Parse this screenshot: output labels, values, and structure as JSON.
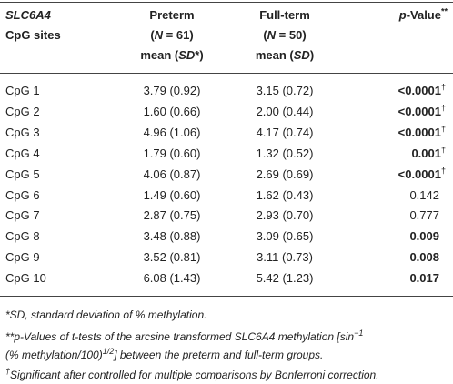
{
  "table": {
    "header": {
      "site": [
        "SLC6A4",
        "CpG sites"
      ],
      "preterm": {
        "title": "Preterm",
        "n": [
          "(",
          "N",
          " = 61)"
        ],
        "stat": [
          "mean (",
          "SD",
          "*)"
        ]
      },
      "full_term": {
        "title": "Full-term",
        "n": [
          "(",
          "N",
          " = 50)"
        ],
        "stat": [
          "mean (",
          "SD",
          ")"
        ]
      },
      "p_value": [
        "p",
        "-Value",
        "**"
      ]
    },
    "rows": [
      {
        "site": "CpG 1",
        "preterm": "3.79 (0.92)",
        "full_term": "3.15 (0.72)",
        "p_value": "<0.0001",
        "bold": true,
        "marker": "†"
      },
      {
        "site": "CpG 2",
        "preterm": "1.60 (0.66)",
        "full_term": "2.00 (0.44)",
        "p_value": "<0.0001",
        "bold": true,
        "marker": "†"
      },
      {
        "site": "CpG 3",
        "preterm": "4.96 (1.06)",
        "full_term": "4.17 (0.74)",
        "p_value": "<0.0001",
        "bold": true,
        "marker": "†"
      },
      {
        "site": "CpG 4",
        "preterm": "1.79 (0.60)",
        "full_term": "1.32 (0.52)",
        "p_value": "0.001",
        "bold": true,
        "marker": "†"
      },
      {
        "site": "CpG 5",
        "preterm": "4.06 (0.87)",
        "full_term": "2.69 (0.69)",
        "p_value": "<0.0001",
        "bold": true,
        "marker": "†"
      },
      {
        "site": "CpG 6",
        "preterm": "1.49 (0.60)",
        "full_term": "1.62 (0.43)",
        "p_value": "0.142",
        "bold": false
      },
      {
        "site": "CpG 7",
        "preterm": "2.87 (0.75)",
        "full_term": "2.93 (0.70)",
        "p_value": "0.777",
        "bold": false
      },
      {
        "site": "CpG 8",
        "preterm": "3.48 (0.88)",
        "full_term": "3.09 (0.65)",
        "p_value": "0.009",
        "bold": true
      },
      {
        "site": "CpG 9",
        "preterm": "3.52 (0.81)",
        "full_term": "3.11 (0.73)",
        "p_value": "0.008",
        "bold": true
      },
      {
        "site": "CpG 10",
        "preterm": "6.08 (1.43)",
        "full_term": "5.42 (1.23)",
        "p_value": "0.017",
        "bold": true
      }
    ]
  },
  "footnotes": {
    "sd": "*SD, standard deviation of % methylation.",
    "p_value": [
      "**p-Values of t-tests of the arcsine transformed SLC6A4 methylation [sin",
      "−1",
      "(% methylation/100)",
      "1/2",
      "] between the preterm and full-term groups."
    ],
    "significance": [
      "†",
      "Significant after controlled for multiple comparisons by Bonferroni correction."
    ]
  }
}
